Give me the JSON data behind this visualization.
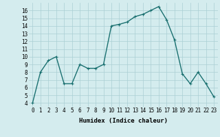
{
  "x": [
    0,
    1,
    2,
    3,
    4,
    5,
    6,
    7,
    8,
    9,
    10,
    11,
    12,
    13,
    14,
    15,
    16,
    17,
    18,
    19,
    20,
    21,
    22,
    23
  ],
  "y": [
    4,
    8,
    9.5,
    10,
    6.5,
    6.5,
    9,
    8.5,
    8.5,
    9,
    14,
    14.2,
    14.5,
    15.2,
    15.5,
    16,
    16.5,
    14.8,
    12.2,
    7.8,
    6.5,
    8,
    6.5,
    4.8
  ],
  "line_color": "#1a7070",
  "marker": "+",
  "marker_size": 3,
  "marker_lw": 0.8,
  "line_width": 1.0,
  "bg_color": "#d4ecee",
  "grid_color": "#aacfd4",
  "xlabel": "Humidex (Indice chaleur)",
  "xlabel_fontsize": 6.5,
  "tick_fontsize": 5.5,
  "ylim": [
    3.5,
    17.0
  ],
  "xlim": [
    -0.5,
    23.5
  ],
  "yticks": [
    4,
    5,
    6,
    7,
    8,
    9,
    10,
    11,
    12,
    13,
    14,
    15,
    16
  ],
  "xticks": [
    0,
    1,
    2,
    3,
    4,
    5,
    6,
    7,
    8,
    9,
    10,
    11,
    12,
    13,
    14,
    15,
    16,
    17,
    18,
    19,
    20,
    21,
    22,
    23
  ]
}
